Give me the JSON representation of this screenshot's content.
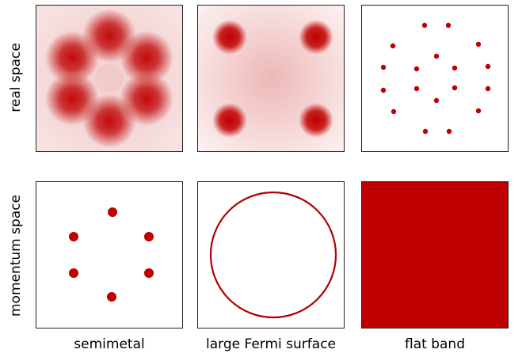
{
  "rows": {
    "real": "real space",
    "momentum": "momentum space"
  },
  "columns": {
    "semimetal": "semimetal",
    "fermi": "large Fermi surface",
    "flat": "flat band"
  },
  "colors": {
    "accent": "#c00000",
    "blob_light": "#f3d2d2",
    "border": "#222222"
  }
}
